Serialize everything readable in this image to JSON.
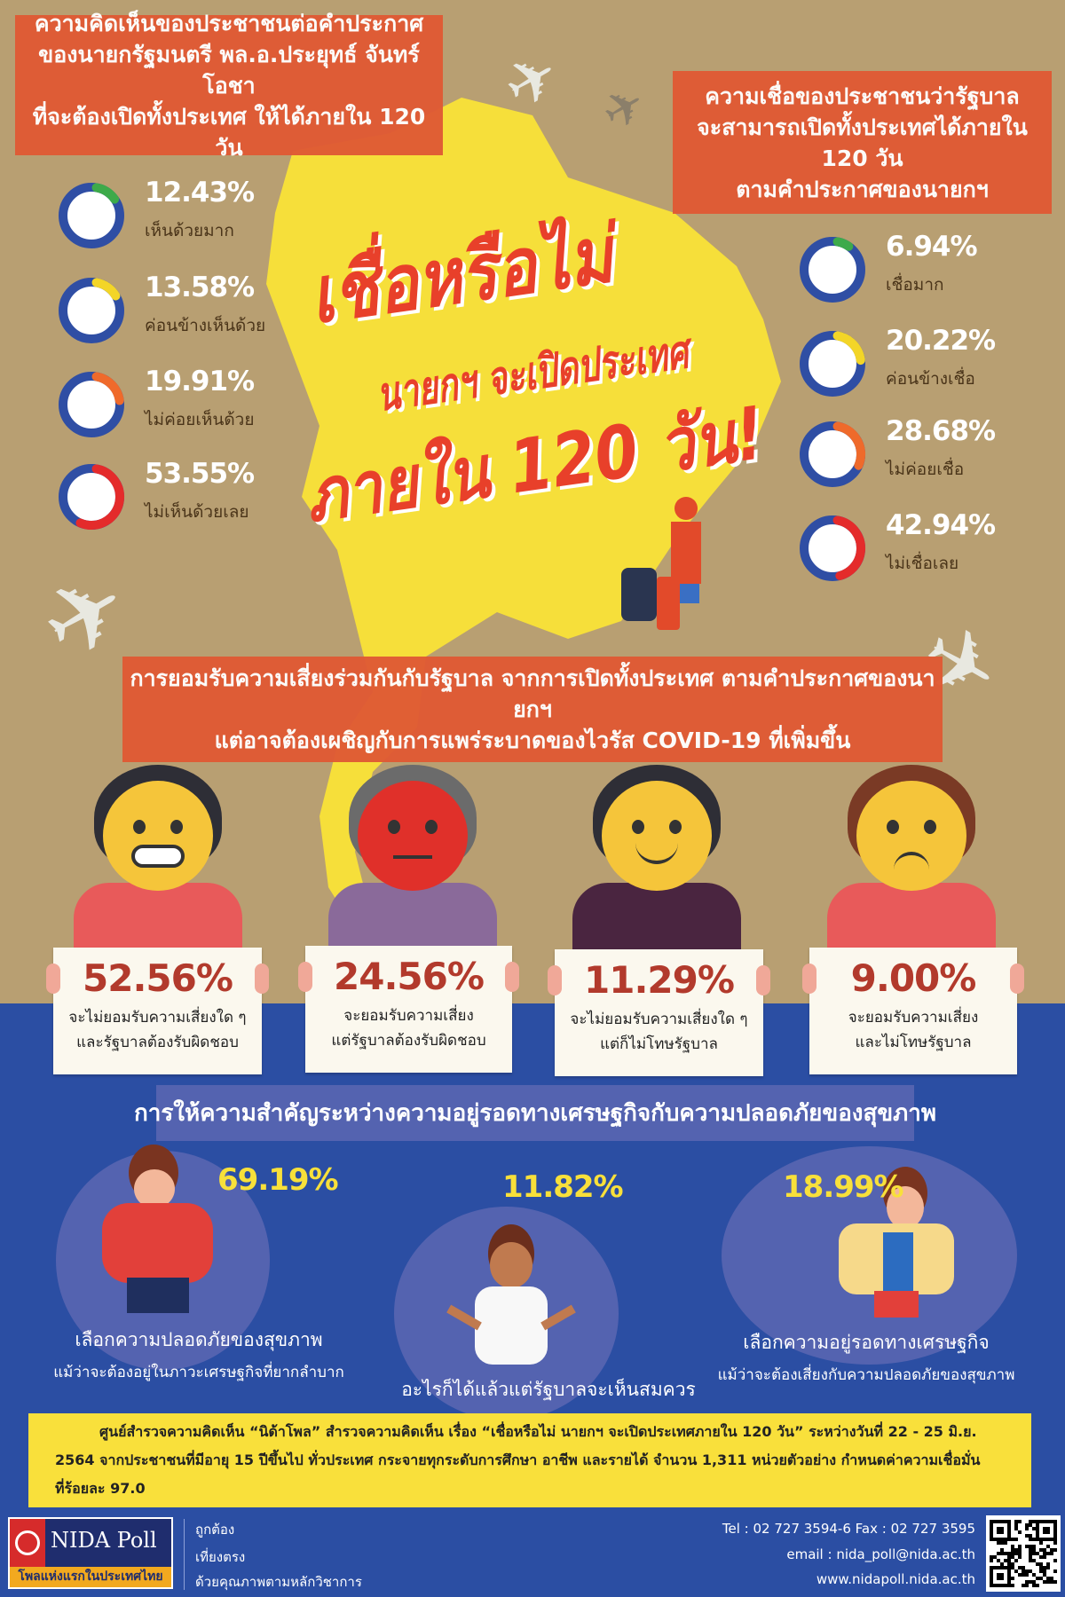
{
  "colors": {
    "background_top": "#b89f72",
    "background_bottom": "#2b4ea3",
    "banner": "#e05a34",
    "map": "#f6df3a",
    "ring": "#2f4ea4",
    "very": "#3daa4a",
    "somewhat": "#f3d527",
    "not_much": "#ef6a2b",
    "not_at_all": "#e42b2b"
  },
  "opinion": {
    "title_lines": [
      "ความคิดเห็นของประชาชนต่อคำประกาศ",
      "ของนายกรัฐมนตรี พล.อ.ประยุทธ์ จันทร์โอชา",
      "ที่จะต้องเปิดทั้งประเทศ ให้ได้ภายใน 120 วัน"
    ],
    "items": [
      {
        "value": 12.43,
        "percent": "12.43%",
        "label": "เห็นด้วยมาก",
        "color": "#3daa4a"
      },
      {
        "value": 13.58,
        "percent": "13.58%",
        "label": "ค่อนข้างเห็นด้วย",
        "color": "#f3d527"
      },
      {
        "value": 19.91,
        "percent": "19.91%",
        "label": "ไม่ค่อยเห็นด้วย",
        "color": "#ef6a2b"
      },
      {
        "value": 53.55,
        "percent": "53.55%",
        "label": "ไม่เห็นด้วยเลย",
        "color": "#e42b2b"
      }
    ]
  },
  "belief": {
    "title_lines": [
      "ความเชื่อของประชาชนว่ารัฐบาล",
      "จะสามารถเปิดทั้งประเทศได้ภายใน 120 วัน",
      "ตามคำประกาศของนายกฯ"
    ],
    "items": [
      {
        "value": 6.94,
        "percent": "6.94%",
        "label": "เชื่อมาก",
        "color": "#3daa4a"
      },
      {
        "value": 20.22,
        "percent": "20.22%",
        "label": "ค่อนข้างเชื่อ",
        "color": "#f3d527"
      },
      {
        "value": 28.68,
        "percent": "28.68%",
        "label": "ไม่ค่อยเชื่อ",
        "color": "#ef6a2b"
      },
      {
        "value": 42.94,
        "percent": "42.94%",
        "label": "ไม่เชื่อเลย",
        "color": "#e42b2b"
      }
    ]
  },
  "headline": {
    "line1": "เชื่อหรือไม่",
    "line2": "นายกฯ จะเปิดประเทศ",
    "line3": "ภายใน 120 วัน!"
  },
  "risk": {
    "title_lines": [
      "การยอมรับความเสี่ยงร่วมกันกับรัฐบาล จากการเปิดทั้งประเทศ ตามคำประกาศของนายกฯ",
      "แต่อาจต้องเผชิญกับการแพร่ระบาดของไวรัส COVID-19 ที่เพิ่มขึ้น"
    ],
    "items": [
      {
        "percent": "52.56%",
        "lines": [
          "จะไม่ยอมรับความเสี่ยงใด ๆ",
          "และรัฐบาลต้องรับผิดชอบ"
        ]
      },
      {
        "percent": "24.56%",
        "lines": [
          "จะยอมรับความเสี่ยง",
          "แต่รัฐบาลต้องรับผิดชอบ"
        ]
      },
      {
        "percent": "11.29%",
        "lines": [
          "จะไม่ยอมรับความเสี่ยงใด ๆ",
          "แต่ก็ไม่โทษรัฐบาล"
        ]
      },
      {
        "percent": "9.00%",
        "lines": [
          "จะยอมรับความเสี่ยง",
          "และไม่โทษรัฐบาล"
        ]
      }
    ]
  },
  "priority": {
    "title": "การให้ความสำคัญระหว่างความอยู่รอดทางเศรษฐกิจกับความปลอดภัยของสุขภาพ",
    "items": [
      {
        "percent": "69.19%",
        "lines": [
          "เลือกความปลอดภัยของสุขภาพ",
          "แม้ว่าจะต้องอยู่ในภาวะเศรษฐกิจที่ยากลำบาก"
        ]
      },
      {
        "percent": "11.82%",
        "lines": [
          "อะไรก็ได้แล้วแต่รัฐบาลจะเห็นสมควร"
        ]
      },
      {
        "percent": "18.99%",
        "lines": [
          "เลือกความอยู่รอดทางเศรษฐกิจ",
          "แม้ว่าจะต้องเสี่ยงกับความปลอดภัยของสุขภาพ"
        ]
      }
    ]
  },
  "info": {
    "lines": [
      "ศูนย์สำรวจความคิดเห็น “นิด้าโพล” สำรวจความคิดเห็น เรื่อง “เชื่อหรือไม่ นายกฯ จะเปิดประเทศภายใน 120 วัน” ระหว่างวันที่ 22 - 25 มิ.ย.",
      "2564 จากประชาชนที่มีอายุ 15 ปีขึ้นไป ทั่วประเทศ กระจายทุกระดับการศึกษา อาชีพ และรายได้ จำนวน 1,311 หน่วยตัวอย่าง กำหนดค่าความเชื่อมั่น",
      "ที่ร้อยละ 97.0"
    ]
  },
  "footer": {
    "logo_text": "NIDA Poll",
    "logo_tagline": "โพลแห่งแรกในประเทศไทย",
    "taglines": [
      "ถูกต้อง",
      "เที่ยงตรง",
      "ด้วยคุณภาพตามหลักวิชาการ"
    ],
    "tel": "Tel : 02 727 3594-6 Fax : 02 727 3595",
    "email": "email : nida_poll@nida.ac.th",
    "web": "www.nidapoll.nida.ac.th"
  }
}
